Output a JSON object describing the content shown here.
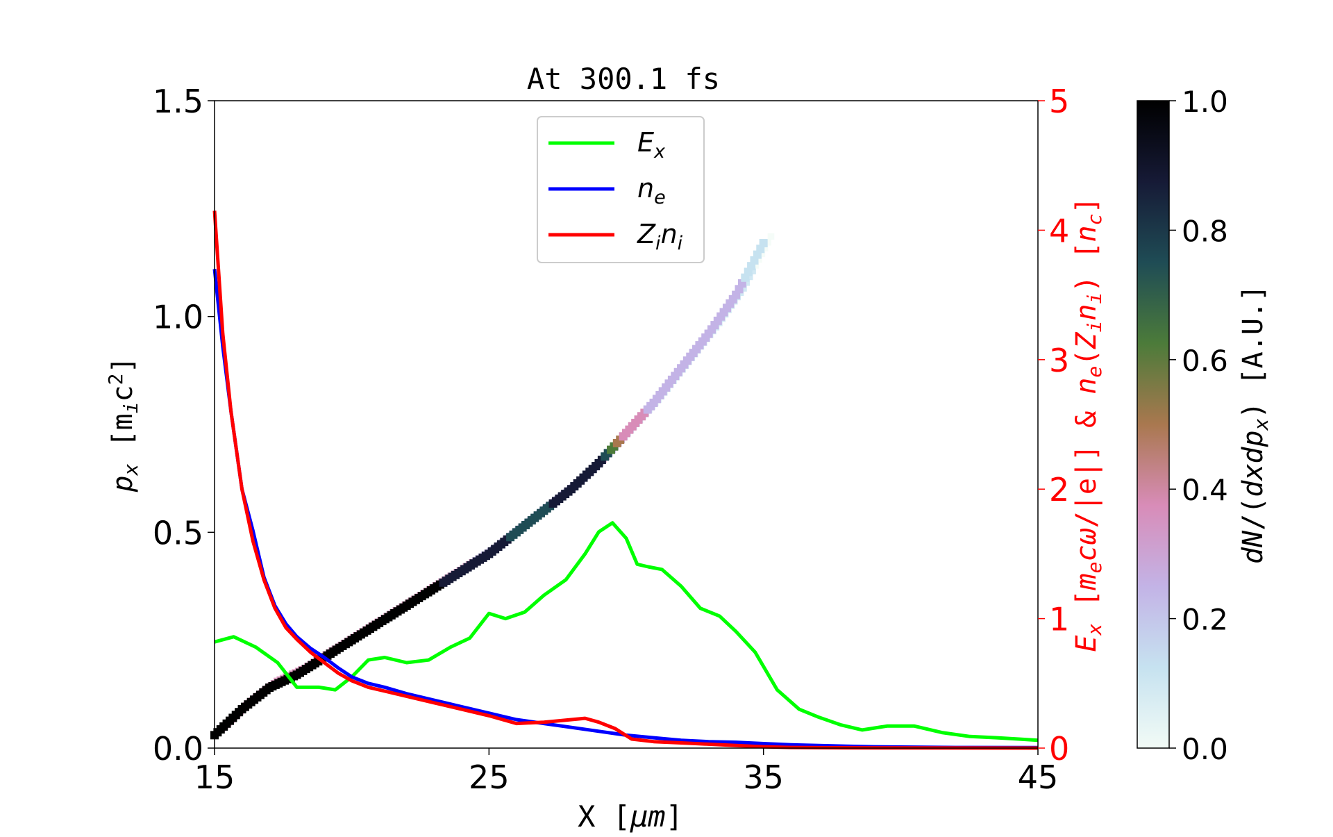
{
  "chart_data": {
    "type": "line",
    "title": "At 300.1 fs",
    "xlabel": "X [μm]",
    "xlim": [
      15,
      45
    ],
    "xticks": [
      15,
      25,
      35,
      45
    ],
    "ylabel_left": "p_x [m_i c²]",
    "ylim_left": [
      0,
      1.5
    ],
    "yticks_left": [
      "0.0",
      "0.5",
      "1.0",
      "1.5"
    ],
    "ylabel_right": "E_x [m_e cω/|e|] & n_e(Z_i n_i) [n_c]",
    "ylim_right": [
      0,
      5
    ],
    "yticks_right": [
      "0",
      "1",
      "2",
      "3",
      "4",
      "5"
    ],
    "right_axis_color": "#ff0000",
    "grid": false,
    "legend": {
      "position": "top-center",
      "entries": [
        {
          "label": "E_x",
          "color": "#00ff00"
        },
        {
          "label": "n_e",
          "color": "#0000ff"
        },
        {
          "label": "Z_i n_i",
          "color": "#ff0000"
        }
      ]
    },
    "colorbar": {
      "label": "dN/(dxdp_x) [A.U.]",
      "range": [
        0,
        1
      ],
      "ticks": [
        "0.0",
        "0.2",
        "0.4",
        "0.6",
        "0.8",
        "1.0"
      ],
      "colormap": [
        "#f2fbf6",
        "#c6e2f0",
        "#c3b3e6",
        "#d88cb8",
        "#a9784f",
        "#4c7b3a",
        "#1f4c55",
        "#161a36",
        "#000000"
      ]
    },
    "series": [
      {
        "name": "E_x",
        "axis": "right",
        "color": "#00ff00",
        "x": [
          15,
          15.7,
          16.5,
          17.3,
          18,
          18.8,
          19.4,
          20,
          20.6,
          21.2,
          22,
          22.8,
          23.6,
          24.3,
          25,
          25.6,
          26.3,
          27,
          27.8,
          28.5,
          29,
          29.5,
          30,
          30.4,
          30.8,
          31.3,
          32,
          32.7,
          33.4,
          34,
          34.7,
          35.5,
          36.3,
          37,
          37.8,
          38.6,
          39.5,
          40.5,
          41.5,
          42.5,
          43.5,
          44.3,
          45
        ],
        "y": [
          0.82,
          0.86,
          0.78,
          0.66,
          0.47,
          0.47,
          0.45,
          0.55,
          0.68,
          0.7,
          0.66,
          0.68,
          0.78,
          0.85,
          1.04,
          1.0,
          1.05,
          1.18,
          1.3,
          1.5,
          1.67,
          1.74,
          1.62,
          1.42,
          1.4,
          1.38,
          1.25,
          1.08,
          1.02,
          0.9,
          0.74,
          0.45,
          0.3,
          0.24,
          0.18,
          0.14,
          0.17,
          0.17,
          0.12,
          0.09,
          0.08,
          0.07,
          0.06
        ]
      },
      {
        "name": "n_e",
        "axis": "right",
        "color": "#0000ff",
        "x": [
          15,
          15.3,
          15.6,
          16,
          16.4,
          16.8,
          17.2,
          17.6,
          18,
          18.5,
          19,
          19.5,
          20,
          20.6,
          21.2,
          22,
          23,
          24,
          25,
          26,
          27,
          28,
          29,
          30,
          31,
          32,
          33,
          34,
          35,
          36,
          37,
          38,
          39,
          40,
          42,
          45
        ],
        "y": [
          3.7,
          3.1,
          2.6,
          2.0,
          1.68,
          1.32,
          1.1,
          0.96,
          0.86,
          0.77,
          0.7,
          0.62,
          0.55,
          0.5,
          0.47,
          0.42,
          0.37,
          0.32,
          0.27,
          0.22,
          0.19,
          0.16,
          0.13,
          0.1,
          0.08,
          0.06,
          0.05,
          0.045,
          0.035,
          0.025,
          0.02,
          0.015,
          0.01,
          0.008,
          0.005,
          0.004
        ]
      },
      {
        "name": "Z_i n_i",
        "axis": "right",
        "color": "#ff0000",
        "x": [
          15,
          15.3,
          15.6,
          16,
          16.4,
          16.8,
          17.2,
          17.6,
          18,
          18.5,
          19,
          19.5,
          20,
          20.6,
          21.2,
          22,
          23,
          24,
          25,
          26,
          27,
          28,
          28.5,
          29,
          29.6,
          30.2,
          31,
          32,
          33,
          34,
          35,
          36,
          37,
          38,
          40,
          45
        ],
        "y": [
          4.15,
          3.2,
          2.6,
          2.0,
          1.6,
          1.3,
          1.08,
          0.93,
          0.84,
          0.74,
          0.66,
          0.58,
          0.52,
          0.47,
          0.44,
          0.4,
          0.35,
          0.3,
          0.25,
          0.19,
          0.2,
          0.22,
          0.23,
          0.2,
          0.15,
          0.07,
          0.05,
          0.04,
          0.03,
          0.02,
          0.01,
          0.005,
          0.003,
          0.002,
          0.001,
          0.0
        ]
      }
    ],
    "histogram": {
      "axis": "left",
      "description_points": {
        "x": [
          15,
          16,
          17,
          18,
          19,
          20,
          21,
          22,
          23,
          24,
          25,
          26,
          27,
          28,
          29,
          30,
          31,
          32,
          33,
          34,
          35
        ],
        "px": [
          0.03,
          0.09,
          0.14,
          0.17,
          0.21,
          0.25,
          0.29,
          0.33,
          0.37,
          0.41,
          0.45,
          0.5,
          0.55,
          0.6,
          0.66,
          0.73,
          0.8,
          0.88,
          0.96,
          1.05,
          1.17
        ]
      },
      "density": [
        1.0,
        1.0,
        1.0,
        1.0,
        1.0,
        1.0,
        1.0,
        0.95,
        0.95,
        0.9,
        0.85,
        0.8,
        0.8,
        0.85,
        0.9,
        0.35,
        0.3,
        0.3,
        0.25,
        0.2,
        0.15
      ]
    }
  }
}
